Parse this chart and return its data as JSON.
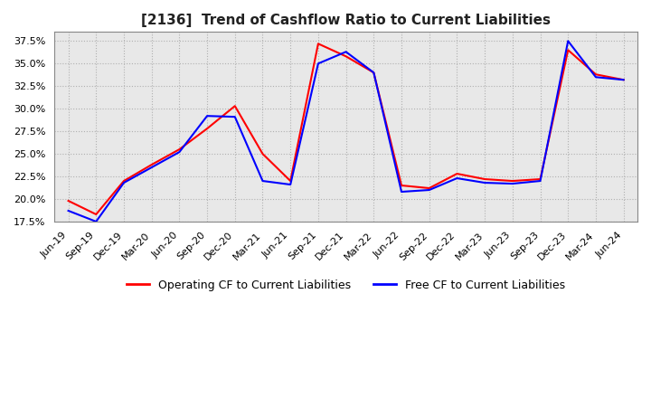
{
  "title": "[2136]  Trend of Cashflow Ratio to Current Liabilities",
  "x_labels": [
    "Jun-19",
    "Sep-19",
    "Dec-19",
    "Mar-20",
    "Jun-20",
    "Sep-20",
    "Dec-20",
    "Mar-21",
    "Jun-21",
    "Sep-21",
    "Dec-21",
    "Mar-22",
    "Jun-22",
    "Sep-22",
    "Dec-22",
    "Mar-23",
    "Jun-23",
    "Sep-23",
    "Dec-23",
    "Mar-24",
    "Jun-24"
  ],
  "operating_cf": [
    0.198,
    0.183,
    0.22,
    0.238,
    0.255,
    0.278,
    0.303,
    0.25,
    0.22,
    0.372,
    0.358,
    0.34,
    0.215,
    0.212,
    0.228,
    0.222,
    0.22,
    0.222,
    0.365,
    0.338,
    0.332
  ],
  "free_cf": [
    0.187,
    0.175,
    0.218,
    0.235,
    0.252,
    0.292,
    0.291,
    0.22,
    0.216,
    0.35,
    0.363,
    0.34,
    0.208,
    0.21,
    0.223,
    0.218,
    0.217,
    0.22,
    0.375,
    0.335,
    0.332
  ],
  "ylim": [
    0.175,
    0.385
  ],
  "yticks": [
    0.175,
    0.2,
    0.225,
    0.25,
    0.275,
    0.3,
    0.325,
    0.35,
    0.375
  ],
  "operating_color": "#ff0000",
  "free_color": "#0000ff",
  "grid_color": "#b0b0b0",
  "background_color": "#ffffff",
  "plot_bg_color": "#e8e8e8",
  "title_fontsize": 11,
  "tick_fontsize": 8,
  "legend_labels": [
    "Operating CF to Current Liabilities",
    "Free CF to Current Liabilities"
  ]
}
